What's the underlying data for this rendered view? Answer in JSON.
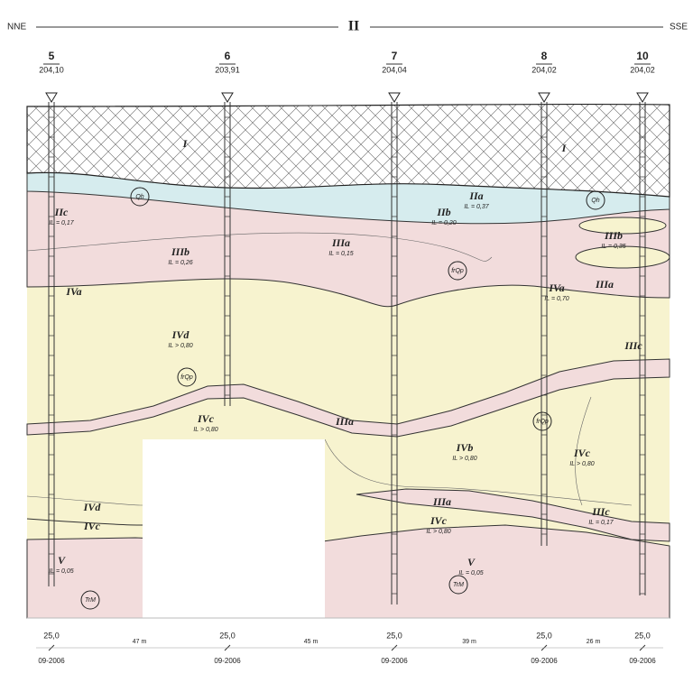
{
  "header": {
    "left": "NNE",
    "title": "II",
    "right": "SSE"
  },
  "boreholes": [
    {
      "number": "5",
      "elevation": "204,10",
      "depth": "25,0",
      "date": "09-2006"
    },
    {
      "number": "6",
      "elevation": "203,91",
      "depth": "25,0",
      "date": "09-2006"
    },
    {
      "number": "7",
      "elevation": "204,04",
      "depth": "25,0",
      "date": "09-2006"
    },
    {
      "number": "8",
      "elevation": "204,02",
      "depth": "25,0",
      "date": "09-2006"
    },
    {
      "number": "10",
      "elevation": "204,02",
      "depth": "25,0",
      "date": "09-2006"
    }
  ],
  "spacings": [
    "47 m",
    "45 m",
    "39 m",
    "26 m"
  ],
  "layers": [
    {
      "name": "I"
    },
    {
      "name": "I"
    },
    {
      "name": "IIa",
      "index": "IL = 0,37"
    },
    {
      "name": "IIb",
      "index": "IL = 0,20"
    },
    {
      "name": "IIc",
      "index": "IL = 0,17"
    },
    {
      "name": "IIIa",
      "index": "IL = 0,15"
    },
    {
      "name": "IIIb",
      "index": "IL = 0,26"
    },
    {
      "name": "IIIb",
      "index": "IL = 0,35"
    },
    {
      "name": "IVa"
    },
    {
      "name": "IVa",
      "index": "IL = 0,70"
    },
    {
      "name": "IIIa"
    },
    {
      "name": "IVd",
      "index": "IL > 0,80"
    },
    {
      "name": "IIIc"
    },
    {
      "name": "IVc",
      "index": "IL > 0,80"
    },
    {
      "name": "IIIa"
    },
    {
      "name": "IVb",
      "index": "IL > 0,80"
    },
    {
      "name": "IVc",
      "index": "IL > 0,80"
    },
    {
      "name": "IVd"
    },
    {
      "name": "IVc"
    },
    {
      "name": "IIIa"
    },
    {
      "name": "IIIc",
      "index": "IL = 0,17"
    },
    {
      "name": "IVc",
      "index": "IL > 0,80"
    },
    {
      "name": "V",
      "index": "IL = 0,05"
    },
    {
      "name": "V",
      "index": "IL = 0,05"
    }
  ],
  "symbols": [
    "Qh",
    "Qh",
    "frQp",
    "frQp",
    "frQp",
    "TrM",
    "TrM"
  ]
}
